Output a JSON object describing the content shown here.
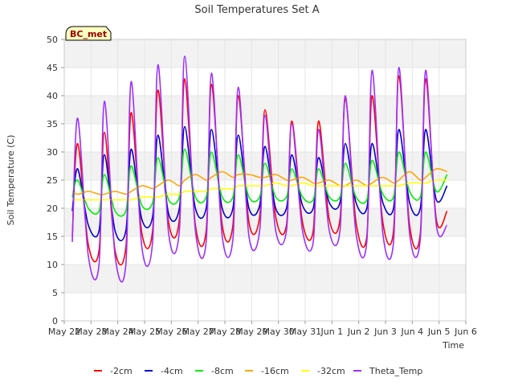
{
  "chart_data": {
    "type": "line",
    "title": "Soil Temperatures Set A",
    "xlabel": "Time",
    "ylabel": "Soil Temperature (C)",
    "site_label": "BC_met",
    "x_ticks": [
      "May 22",
      "May 23",
      "May 24",
      "May 25",
      "May 26",
      "May 27",
      "May 28",
      "May 29",
      "May 30",
      "May 31",
      "Jun 1",
      "Jun 2",
      "Jun 3",
      "Jun 4",
      "Jun 5",
      "Jun 6"
    ],
    "y_ticks": [
      "0",
      "5",
      "10",
      "15",
      "20",
      "25",
      "30",
      "35",
      "40",
      "45",
      "50"
    ],
    "xlim_days": [
      0,
      15
    ],
    "ylim": [
      0,
      50
    ],
    "grid": true,
    "legend_position": "bottom",
    "sample_days": [
      0.3,
      0.5,
      0.9,
      1.3,
      1.5,
      1.9,
      2.3,
      2.5,
      2.9,
      3.3,
      3.5,
      3.9,
      4.3,
      4.5,
      4.9,
      5.3,
      5.5,
      5.9,
      6.3,
      6.5,
      6.9,
      7.3,
      7.5,
      7.9,
      8.3,
      8.5,
      8.9,
      9.3,
      9.5,
      9.9,
      10.3,
      10.5,
      10.9,
      11.3,
      11.5,
      11.9,
      12.3,
      12.5,
      12.9,
      13.3,
      13.5,
      13.9,
      14.3
    ],
    "series": [
      {
        "name": "-2cm",
        "color": "#ff0000",
        "values": [
          15,
          31.5,
          13.5,
          12.5,
          33.5,
          12.5,
          13,
          37,
          15.5,
          16,
          41,
          17.5,
          18,
          43,
          17,
          16,
          42,
          17,
          17,
          40,
          17.5,
          18.5,
          37.5,
          18.5,
          17,
          35.5,
          17.5,
          16,
          35.5,
          18,
          18,
          39.5,
          17.5,
          15,
          40,
          17.5,
          16,
          43.5,
          17,
          15.5,
          43,
          18,
          19.5
        ]
      },
      {
        "name": "-4cm",
        "color": "#0000cc",
        "values": [
          19.5,
          27,
          17,
          16,
          29.5,
          16,
          16,
          30.5,
          18,
          18.5,
          33,
          19,
          20,
          34.5,
          20,
          20,
          34,
          20,
          20,
          33,
          20,
          20.5,
          31,
          20,
          20,
          29.5,
          20.5,
          20,
          29,
          21,
          21,
          31.5,
          21,
          20,
          31.5,
          21,
          20,
          34,
          21,
          20,
          34,
          21.5,
          24
        ]
      },
      {
        "name": "-8cm",
        "color": "#00ee00",
        "values": [
          22,
          25,
          20,
          19.5,
          26,
          19.5,
          19.5,
          27.5,
          20.5,
          21,
          29,
          21.5,
          22,
          30.5,
          22,
          22,
          30,
          22,
          22,
          29.5,
          22,
          22,
          28,
          22,
          22,
          27,
          22,
          21.5,
          27,
          22,
          22,
          28,
          22,
          21.5,
          28.5,
          22.5,
          22,
          30,
          23,
          22,
          30,
          23,
          26
        ]
      },
      {
        "name": "-16cm",
        "color": "#ffa500",
        "values": [
          23,
          22.5,
          23,
          22.5,
          22.5,
          23,
          22.5,
          23,
          24,
          23.5,
          24,
          25,
          24,
          25,
          26,
          25,
          25.5,
          26.5,
          25.5,
          26,
          26,
          25.5,
          25.5,
          26,
          25,
          25,
          25.5,
          24.5,
          24.5,
          25,
          24,
          24,
          25,
          24,
          24.5,
          25.5,
          24.5,
          25,
          26.5,
          25,
          25.5,
          27,
          26.5
        ]
      },
      {
        "name": "-32cm",
        "color": "#ffff00",
        "values": [
          21.5,
          21.5,
          21.5,
          21.5,
          21.5,
          21.5,
          21.5,
          21.5,
          22,
          22,
          22,
          22.5,
          22.5,
          23,
          23,
          23,
          23.5,
          23.5,
          23.5,
          24,
          24,
          24,
          24,
          24.5,
          24,
          24,
          24.5,
          24,
          24,
          24,
          24,
          24,
          24,
          24,
          24,
          24,
          24,
          24,
          24.5,
          24.5,
          24.5,
          25,
          25
        ]
      },
      {
        "name": "Theta_Temp",
        "color": "#9b30ff",
        "values": [
          14,
          36,
          11.5,
          10,
          39,
          11.5,
          10,
          42.5,
          13,
          14,
          45.5,
          15.5,
          16,
          47,
          16,
          14,
          44,
          15,
          14.5,
          41.5,
          15,
          16,
          36.5,
          16,
          16,
          35,
          16,
          14,
          34,
          16,
          16,
          40,
          15.5,
          14,
          44.5,
          15.5,
          14,
          45,
          15.5,
          14.5,
          44.5,
          17,
          17
        ]
      }
    ]
  }
}
